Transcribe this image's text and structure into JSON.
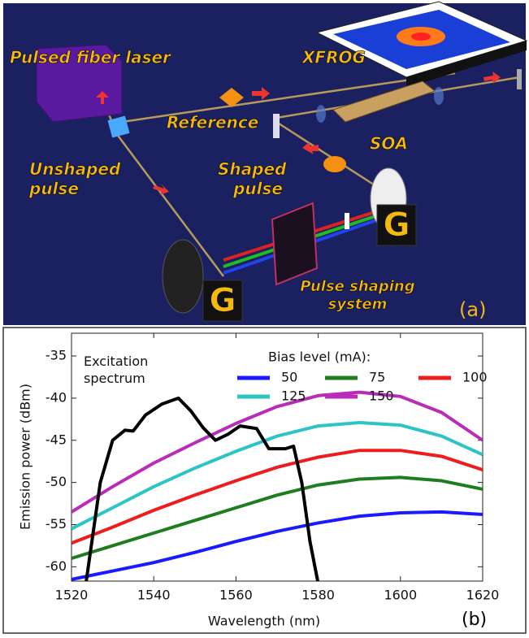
{
  "diagram": {
    "laser": "Pulsed fiber laser",
    "xfrog": "XFROG",
    "reference": "Reference",
    "soa": "SOA",
    "unshaped": "Unshaped pulse",
    "shaped": "Shaped pulse",
    "shaper": "Pulse shaping system",
    "grating_left": "G",
    "grating_right": "G",
    "panel": "(a)"
  },
  "chart_data": {
    "type": "line",
    "panel": "(b)",
    "xlabel": "Wavelength (nm)",
    "ylabel": "Emission power (dBm)",
    "legend_title": "Bias level (mA):",
    "xlim": [
      1520,
      1620
    ],
    "ylim": [
      -61.7,
      -32.3
    ],
    "xticks": [
      1520,
      1540,
      1560,
      1580,
      1600,
      1620
    ],
    "yticks": [
      -60,
      -55,
      -50,
      -45,
      -40,
      -35
    ],
    "x": [
      1520,
      1530,
      1540,
      1550,
      1560,
      1570,
      1580,
      1590,
      1600,
      1610,
      1620
    ],
    "series": [
      {
        "name": "50",
        "color": "#1a1aff",
        "values": [
          -61.5,
          -60.5,
          -59.5,
          -58.3,
          -57,
          -55.8,
          -54.8,
          -54,
          -53.6,
          -53.5,
          -53.8
        ]
      },
      {
        "name": "75",
        "color": "#1e7d1e",
        "values": [
          -59,
          -57.5,
          -56,
          -54.5,
          -53,
          -51.5,
          -50.3,
          -49.6,
          -49.4,
          -49.8,
          -50.8
        ]
      },
      {
        "name": "100",
        "color": "#ee1c1c",
        "values": [
          -57.2,
          -55.3,
          -53.3,
          -51.5,
          -49.8,
          -48.2,
          -47,
          -46.2,
          -46.2,
          -46.9,
          -48.5
        ]
      },
      {
        "name": "125",
        "color": "#2cc4c4",
        "values": [
          -55.5,
          -53,
          -50.5,
          -48.3,
          -46.3,
          -44.5,
          -43.3,
          -42.9,
          -43.2,
          -44.5,
          -46.7
        ]
      },
      {
        "name": "150",
        "color": "#b82cb8",
        "values": [
          -53.5,
          -50.5,
          -47.7,
          -45.3,
          -43,
          -41,
          -39.7,
          -39.3,
          -39.8,
          -41.7,
          -45
        ]
      },
      {
        "name": "Excitation spectrum",
        "color": "#000000",
        "x": [
          1523.5,
          1527,
          1530,
          1533,
          1535,
          1538,
          1542,
          1546,
          1549,
          1552,
          1555,
          1558,
          1561,
          1565,
          1568,
          1572,
          1574,
          1576,
          1578,
          1580
        ],
        "values": [
          -62,
          -50,
          -45,
          -43.8,
          -43.9,
          -42,
          -40.7,
          -40,
          -41.5,
          -43.5,
          -45,
          -44.3,
          -43.3,
          -43.6,
          -46,
          -46,
          -45.7,
          -50,
          -57,
          -62
        ]
      }
    ]
  }
}
